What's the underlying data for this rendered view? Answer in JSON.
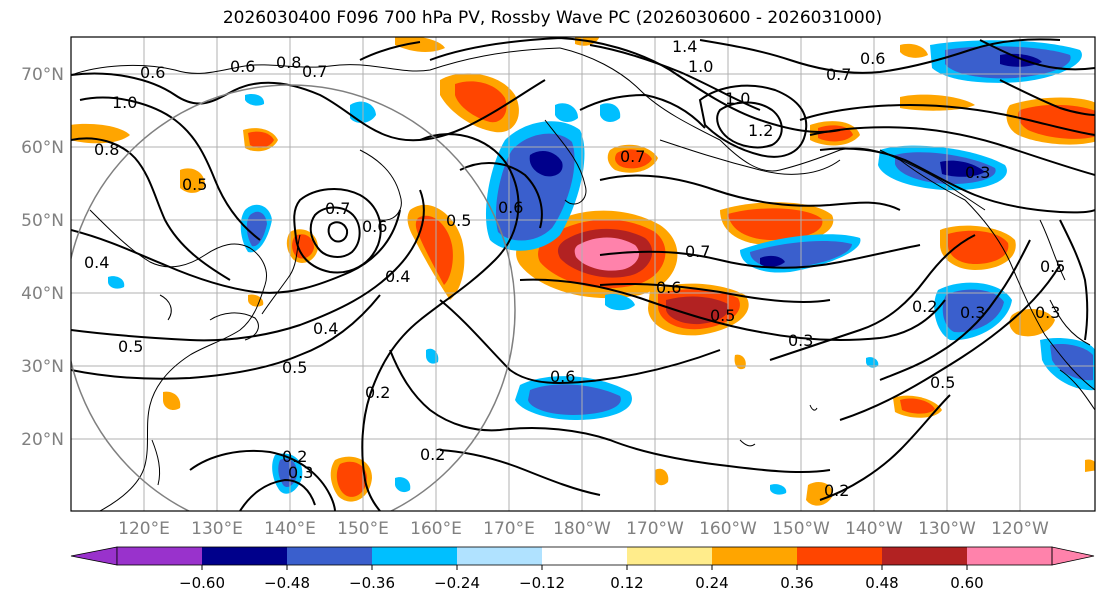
{
  "title": "2026030400 F096 700 hPa PV, Rossby Wave PC (2026030600 - 2026031000)",
  "map": {
    "lat_labels": [
      "70°N",
      "60°N",
      "50°N",
      "40°N",
      "30°N",
      "20°N"
    ],
    "lon_labels": [
      "120°E",
      "130°E",
      "140°E",
      "150°E",
      "160°E",
      "170°E",
      "180°W",
      "170°W",
      "160°W",
      "150°W",
      "140°W",
      "130°W",
      "120°W"
    ],
    "contour_labels": [
      "0.6",
      "0.8",
      "0.7",
      "1.4",
      "1.0",
      "0.6",
      "0.7",
      "1.0",
      "0.6",
      "0.8",
      "0.7",
      "0.5",
      "0.7",
      "0.6",
      "0.5",
      "0.4",
      "0.4",
      "0.4",
      "0.5",
      "0.5",
      "0.2",
      "0.6",
      "0.7",
      "0.6",
      "0.5",
      "0.3",
      "0.6",
      "0.2",
      "0.2",
      "0.3",
      "0.2",
      "0.3",
      "0.5",
      "0.2",
      "0.3",
      "1.2",
      "0.3",
      "0.5",
      "1.0"
    ]
  },
  "colorbar": {
    "ticks": [
      "−0.60",
      "−0.48",
      "−0.36",
      "−0.24",
      "−0.12",
      "0.12",
      "0.24",
      "0.36",
      "0.48",
      "0.60"
    ],
    "colors": [
      "#9932cc",
      "#00008b",
      "#3a5fcd",
      "#00bfff",
      "#b0e2ff",
      "#ffffff",
      "#ffec8b",
      "#ffa500",
      "#ff4500",
      "#b22222",
      "#ff82ab"
    ]
  }
}
